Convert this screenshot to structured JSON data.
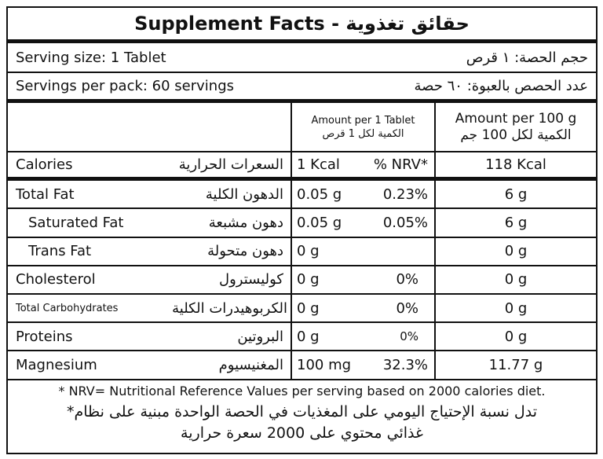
{
  "title": "Supplement Facts - حقائق تغذوية",
  "serving_size": {
    "en": "Serving size: 1 Tablet",
    "ar": "حجم الحصة: ١ قرص"
  },
  "servings_per_pack": {
    "en": "Servings per pack: 60 servings",
    "ar": "عدد الحصص بالعبوة: ٦٠ حصة"
  },
  "header": {
    "per_tablet_en": "Amount per 1 Tablet",
    "per_tablet_ar": "الكمية لكل 1 قرص",
    "per_100g_en": "Amount per 100 g",
    "per_100g_ar": "الكمية لكل 100 جم"
  },
  "rows": [
    {
      "en": "Calories",
      "ar": "السعرات الحرارية",
      "amount": "1 Kcal",
      "nrv": "% NRV*",
      "per100": "118 Kcal"
    },
    {
      "en": "Total Fat",
      "ar": "الدهون الكلية",
      "amount": "0.05 g",
      "nrv": "0.23%",
      "per100": "6 g"
    },
    {
      "en": "Saturated Fat",
      "ar": "دهون مشبعة",
      "amount": "0.05 g",
      "nrv": "0.05%",
      "per100": "6 g"
    },
    {
      "en": "Trans Fat",
      "ar": "دهون متحولة",
      "amount": "0 g",
      "nrv": "",
      "per100": "0 g"
    },
    {
      "en": "Cholesterol",
      "ar": "كوليسترول",
      "amount": "0 g",
      "nrv": "0%",
      "per100": "0 g"
    },
    {
      "en": "Total Carbohydrates",
      "ar": "الكربوهيدرات الكلية",
      "amount": "0 g",
      "nrv": "0%",
      "per100": "0 g"
    },
    {
      "en": "Proteins",
      "ar": "البروتين",
      "amount": "0 g",
      "nrv": "0%",
      "per100": "0 g"
    },
    {
      "en": "Magnesium",
      "ar": "المغنيسيوم",
      "amount": "100 mg",
      "nrv": "32.3%",
      "per100": "11.77 g"
    }
  ],
  "footnote": {
    "en": "* NRV= Nutritional Reference Values per serving based on 2000 calories diet.",
    "ar1": "*تدل نسبة الإحتياج اليومي على المغذيات في الحصة الواحدة مبنية على نظام",
    "ar2": "غذائي محتوي على 2000 سعرة حرارية"
  }
}
